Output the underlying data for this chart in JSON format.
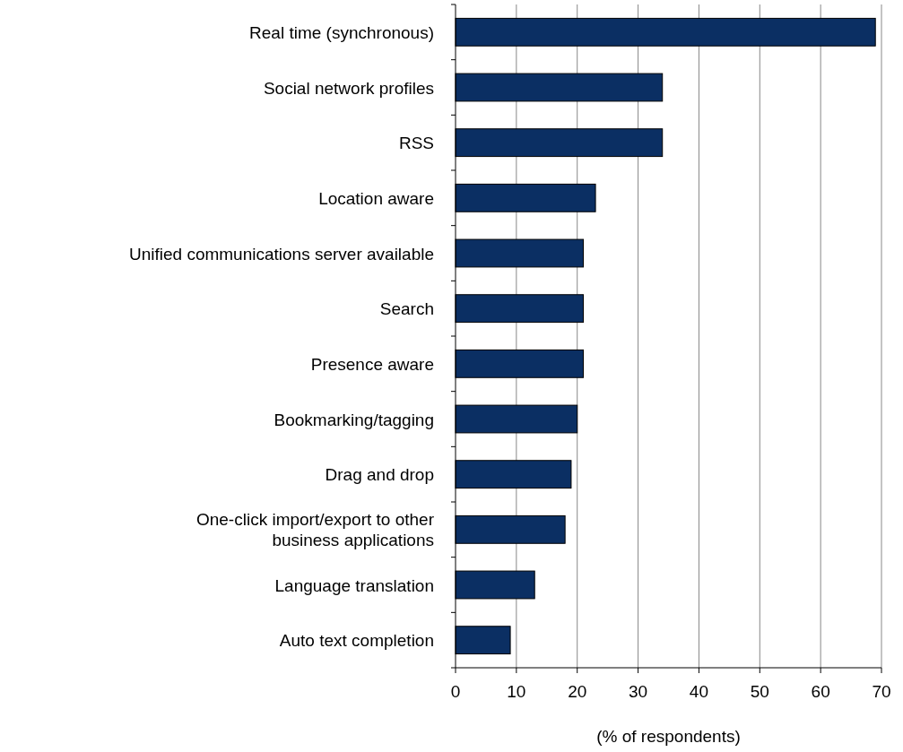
{
  "chart_data": {
    "type": "bar",
    "orientation": "horizontal",
    "xlabel": "(% of respondents)",
    "categories": [
      "Real time (synchronous)",
      "Social network profiles",
      "RSS",
      "Location aware",
      "Unified communications server available",
      "Search",
      "Presence aware",
      "Bookmarking/tagging",
      "Drag and drop",
      "One-click import/export to other business applications",
      "Language translation",
      "Auto text completion"
    ],
    "values": [
      69,
      34,
      34,
      23,
      21,
      21,
      21,
      20,
      19,
      18,
      13,
      9
    ],
    "color": "#0b2f63",
    "xlim": [
      0,
      70
    ],
    "xticks": [
      0,
      10,
      20,
      30,
      40,
      50,
      60,
      70
    ],
    "grid": "x"
  }
}
